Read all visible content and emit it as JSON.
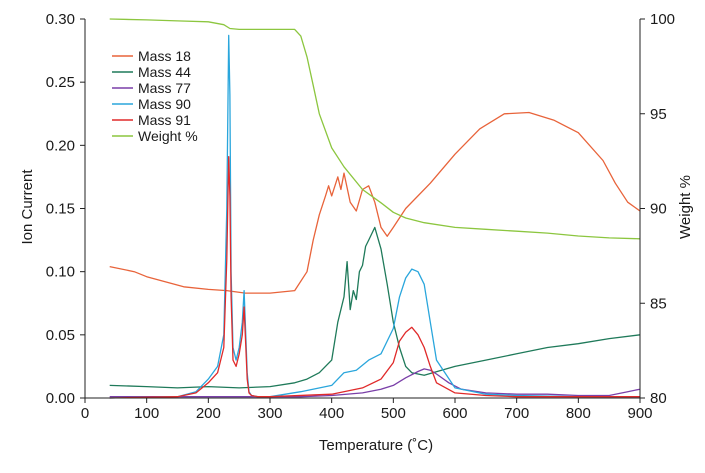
{
  "chart_data": {
    "type": "line",
    "title": "",
    "xlabel": "Temperature (˚C)",
    "ylabel_left": "Ion Current",
    "ylabel_right": "Weight %",
    "xlim": [
      0,
      900
    ],
    "ylim_left": [
      0,
      0.3
    ],
    "ylim_right": [
      80,
      100
    ],
    "x_ticks": [
      "0",
      "100",
      "200",
      "300",
      "400",
      "500",
      "600",
      "700",
      "800",
      "900"
    ],
    "x_tick_values": [
      0,
      100,
      200,
      300,
      400,
      500,
      600,
      700,
      800,
      900
    ],
    "y_left_ticks": [
      "0.00",
      "0.05",
      "0.10",
      "0.15",
      "0.20",
      "0.25",
      "0.30"
    ],
    "y_left_tick_values": [
      0,
      0.05,
      0.1,
      0.15,
      0.2,
      0.25,
      0.3
    ],
    "y_right_ticks": [
      "80",
      "85",
      "90",
      "95",
      "100"
    ],
    "y_right_tick_values": [
      80,
      85,
      90,
      95,
      100
    ],
    "grid": false,
    "legend_position": "top-left",
    "series": [
      {
        "name": "Mass 18",
        "axis": "left",
        "color": "#e8633a",
        "x": [
          40,
          80,
          100,
          130,
          160,
          200,
          230,
          260,
          300,
          340,
          360,
          370,
          380,
          390,
          395,
          400,
          410,
          415,
          420,
          430,
          440,
          450,
          460,
          470,
          480,
          490,
          500,
          520,
          560,
          600,
          640,
          680,
          720,
          760,
          800,
          840,
          860,
          880,
          900
        ],
        "y": [
          0.104,
          0.1,
          0.096,
          0.092,
          0.088,
          0.086,
          0.085,
          0.083,
          0.083,
          0.085,
          0.1,
          0.125,
          0.145,
          0.16,
          0.168,
          0.16,
          0.175,
          0.165,
          0.178,
          0.155,
          0.148,
          0.165,
          0.168,
          0.155,
          0.135,
          0.128,
          0.135,
          0.15,
          0.17,
          0.193,
          0.213,
          0.225,
          0.226,
          0.22,
          0.21,
          0.188,
          0.17,
          0.155,
          0.148
        ]
      },
      {
        "name": "Mass 44",
        "axis": "left",
        "color": "#1f7a5a",
        "x": [
          40,
          100,
          150,
          200,
          250,
          300,
          340,
          360,
          380,
          400,
          410,
          420,
          425,
          430,
          435,
          440,
          445,
          450,
          455,
          460,
          470,
          480,
          490,
          500,
          510,
          520,
          530,
          550,
          600,
          650,
          700,
          750,
          800,
          850,
          900
        ],
        "y": [
          0.01,
          0.009,
          0.008,
          0.009,
          0.008,
          0.009,
          0.012,
          0.015,
          0.02,
          0.03,
          0.06,
          0.08,
          0.108,
          0.07,
          0.085,
          0.078,
          0.1,
          0.105,
          0.12,
          0.125,
          0.135,
          0.118,
          0.09,
          0.06,
          0.04,
          0.025,
          0.02,
          0.018,
          0.025,
          0.03,
          0.035,
          0.04,
          0.043,
          0.047,
          0.05
        ]
      },
      {
        "name": "Mass 77",
        "axis": "left",
        "color": "#7a3fa8",
        "x": [
          40,
          150,
          250,
          300,
          350,
          400,
          450,
          480,
          500,
          520,
          540,
          550,
          560,
          570,
          590,
          610,
          650,
          700,
          750,
          800,
          850,
          880,
          900
        ],
        "y": [
          0.001,
          0.001,
          0.001,
          0.001,
          0.001,
          0.002,
          0.004,
          0.007,
          0.01,
          0.016,
          0.021,
          0.023,
          0.022,
          0.019,
          0.012,
          0.007,
          0.004,
          0.003,
          0.003,
          0.002,
          0.002,
          0.005,
          0.007
        ]
      },
      {
        "name": "Mass 90",
        "axis": "left",
        "color": "#2aa6dc",
        "x": [
          40,
          150,
          180,
          200,
          215,
          225,
          230,
          233,
          235,
          237,
          240,
          245,
          250,
          255,
          258,
          260,
          263,
          266,
          270,
          280,
          300,
          350,
          400,
          420,
          440,
          460,
          480,
          500,
          510,
          520,
          530,
          540,
          550,
          560,
          570,
          600,
          650,
          700,
          800,
          900
        ],
        "y": [
          0.0,
          0.001,
          0.005,
          0.015,
          0.025,
          0.05,
          0.15,
          0.287,
          0.24,
          0.1,
          0.04,
          0.03,
          0.04,
          0.06,
          0.085,
          0.06,
          0.02,
          0.005,
          0.002,
          0.001,
          0.001,
          0.005,
          0.01,
          0.02,
          0.022,
          0.03,
          0.035,
          0.055,
          0.08,
          0.095,
          0.102,
          0.1,
          0.09,
          0.06,
          0.03,
          0.008,
          0.003,
          0.002,
          0.001,
          0.001
        ]
      },
      {
        "name": "Mass 91",
        "axis": "left",
        "color": "#e02a2a",
        "x": [
          40,
          150,
          180,
          200,
          215,
          225,
          230,
          233,
          235,
          237,
          240,
          245,
          250,
          255,
          258,
          260,
          263,
          266,
          270,
          280,
          300,
          400,
          450,
          480,
          500,
          510,
          520,
          530,
          540,
          550,
          560,
          570,
          600,
          650,
          700,
          800,
          900
        ],
        "y": [
          0.0,
          0.001,
          0.004,
          0.012,
          0.02,
          0.04,
          0.11,
          0.191,
          0.16,
          0.08,
          0.03,
          0.025,
          0.035,
          0.05,
          0.072,
          0.05,
          0.015,
          0.004,
          0.002,
          0.001,
          0.001,
          0.003,
          0.008,
          0.015,
          0.028,
          0.045,
          0.052,
          0.056,
          0.05,
          0.04,
          0.025,
          0.012,
          0.004,
          0.002,
          0.001,
          0.001,
          0.001
        ]
      },
      {
        "name": "Weight %",
        "axis": "right",
        "color": "#8cc63f",
        "x": [
          40,
          100,
          150,
          200,
          225,
          235,
          250,
          300,
          340,
          350,
          360,
          370,
          380,
          400,
          420,
          450,
          480,
          500,
          520,
          550,
          600,
          650,
          700,
          750,
          800,
          850,
          900
        ],
        "y": [
          100.0,
          99.95,
          99.9,
          99.85,
          99.7,
          99.5,
          99.45,
          99.45,
          99.45,
          99.1,
          98.0,
          96.5,
          95.0,
          93.2,
          92.2,
          91.0,
          90.3,
          89.8,
          89.5,
          89.25,
          89.0,
          88.9,
          88.8,
          88.7,
          88.55,
          88.45,
          88.4
        ]
      }
    ]
  }
}
